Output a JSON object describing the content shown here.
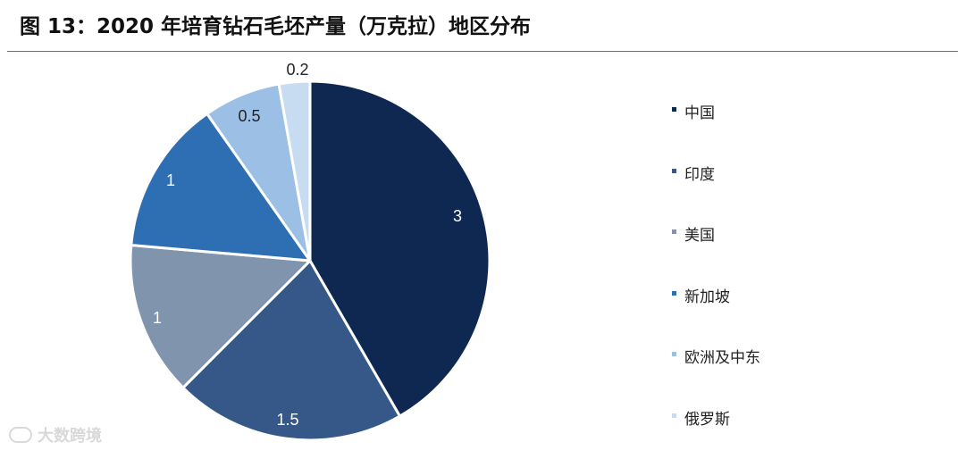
{
  "figure": {
    "title": "图 13：2020 年培育钻石毛坯产量（万克拉）地区分布"
  },
  "chart_data": {
    "type": "pie",
    "title": "",
    "start_angle_deg": 0,
    "direction": "clockwise",
    "slices": [
      {
        "label": "中国",
        "value": 3,
        "value_label": "3",
        "color": "#0e2851"
      },
      {
        "label": "印度",
        "value": 1.5,
        "value_label": "1.5",
        "color": "#365888"
      },
      {
        "label": "美国",
        "value": 1,
        "value_label": "1",
        "color": "#8094ae"
      },
      {
        "label": "新加坡",
        "value": 1,
        "value_label": "1",
        "color": "#2e6fb3"
      },
      {
        "label": "欧洲及中东",
        "value": 0.5,
        "value_label": "0.5",
        "color": "#9cc0e5"
      },
      {
        "label": "俄罗斯",
        "value": 0.2,
        "value_label": "0.2",
        "color": "#c8dcf1"
      }
    ],
    "legend_position": "right"
  },
  "watermark": {
    "text": "大数跨境"
  }
}
